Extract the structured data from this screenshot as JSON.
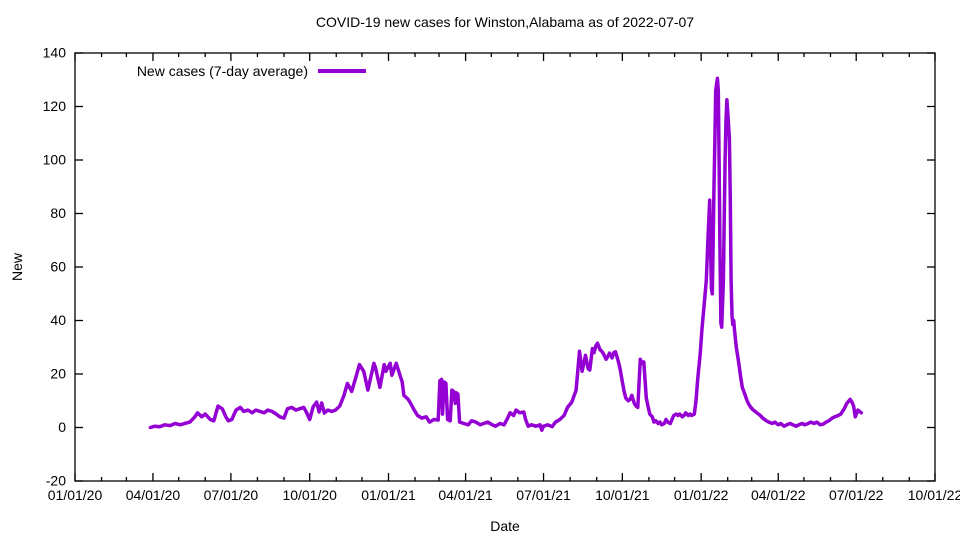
{
  "chart_data": {
    "type": "line",
    "title": "COVID-19 new cases for Winston,Alabama as of 2022-07-07",
    "xlabel": "Date",
    "ylabel": "New",
    "ylim": [
      -20,
      140
    ],
    "x_range": [
      "2020-01-01",
      "2022-10-01"
    ],
    "y_ticks": [
      -20,
      0,
      20,
      40,
      60,
      80,
      100,
      120,
      140
    ],
    "x_ticks": [
      "01/01/20",
      "04/01/20",
      "07/01/20",
      "10/01/20",
      "01/01/21",
      "04/01/21",
      "07/01/21",
      "10/01/21",
      "01/01/22",
      "04/01/22",
      "07/01/22",
      "10/01/22"
    ],
    "grid": false,
    "legend_position": "top-left-inside",
    "line_color": "#9400D3",
    "axis_color": "#000000",
    "background_color": "#ffffff",
    "series": [
      {
        "name": "New cases (7-day average)",
        "points": [
          [
            "2020-03-29",
            0
          ],
          [
            "2020-04-03",
            0.5
          ],
          [
            "2020-04-09",
            0.3
          ],
          [
            "2020-04-15",
            1
          ],
          [
            "2020-04-21",
            0.7
          ],
          [
            "2020-04-27",
            1.5
          ],
          [
            "2020-05-03",
            1
          ],
          [
            "2020-05-08",
            1.5
          ],
          [
            "2020-05-14",
            2
          ],
          [
            "2020-05-20",
            4
          ],
          [
            "2020-05-23",
            5.5
          ],
          [
            "2020-05-28",
            4
          ],
          [
            "2020-06-01",
            5
          ],
          [
            "2020-06-07",
            3
          ],
          [
            "2020-06-11",
            2.5
          ],
          [
            "2020-06-16",
            8
          ],
          [
            "2020-06-21",
            7
          ],
          [
            "2020-06-25",
            4
          ],
          [
            "2020-06-28",
            2.5
          ],
          [
            "2020-07-02",
            3
          ],
          [
            "2020-07-07",
            6.5
          ],
          [
            "2020-07-12",
            7.5
          ],
          [
            "2020-07-16",
            6
          ],
          [
            "2020-07-21",
            6.5
          ],
          [
            "2020-07-26",
            5.5
          ],
          [
            "2020-07-30",
            6.5
          ],
          [
            "2020-08-04",
            6
          ],
          [
            "2020-08-09",
            5.5
          ],
          [
            "2020-08-13",
            6.5
          ],
          [
            "2020-08-18",
            6
          ],
          [
            "2020-08-23",
            5
          ],
          [
            "2020-08-27",
            4
          ],
          [
            "2020-09-01",
            3.5
          ],
          [
            "2020-09-05",
            7
          ],
          [
            "2020-09-10",
            7.5
          ],
          [
            "2020-09-15",
            6.5
          ],
          [
            "2020-09-19",
            7
          ],
          [
            "2020-09-24",
            7.5
          ],
          [
            "2020-09-27",
            5.8
          ],
          [
            "2020-10-01",
            3
          ],
          [
            "2020-10-05",
            7.7
          ],
          [
            "2020-10-09",
            9.5
          ],
          [
            "2020-10-12",
            5.8
          ],
          [
            "2020-10-15",
            9.2
          ],
          [
            "2020-10-18",
            5.4
          ],
          [
            "2020-10-22",
            6.5
          ],
          [
            "2020-10-27",
            6
          ],
          [
            "2020-10-31",
            6.5
          ],
          [
            "2020-11-05",
            8
          ],
          [
            "2020-11-10",
            12
          ],
          [
            "2020-11-14",
            16.5
          ],
          [
            "2020-11-19",
            13.5
          ],
          [
            "2020-11-24",
            19
          ],
          [
            "2020-11-28",
            23.5
          ],
          [
            "2020-12-03",
            21
          ],
          [
            "2020-12-08",
            14
          ],
          [
            "2020-12-10",
            17
          ],
          [
            "2020-12-15",
            24
          ],
          [
            "2020-12-17",
            22
          ],
          [
            "2020-12-22",
            15
          ],
          [
            "2020-12-27",
            23.5
          ],
          [
            "2020-12-29",
            21
          ],
          [
            "2021-01-03",
            24
          ],
          [
            "2021-01-05",
            19.5
          ],
          [
            "2021-01-10",
            24
          ],
          [
            "2021-01-12",
            22
          ],
          [
            "2021-01-17",
            17
          ],
          [
            "2021-01-19",
            12
          ],
          [
            "2021-01-24",
            10.5
          ],
          [
            "2021-01-26",
            9.5
          ],
          [
            "2021-01-31",
            6.5
          ],
          [
            "2021-02-04",
            4.5
          ],
          [
            "2021-02-09",
            3.5
          ],
          [
            "2021-02-14",
            4
          ],
          [
            "2021-02-18",
            2
          ],
          [
            "2021-02-23",
            3
          ],
          [
            "2021-02-28",
            2.8
          ],
          [
            "2021-03-02",
            17.5
          ],
          [
            "2021-03-04",
            18
          ],
          [
            "2021-03-05",
            5
          ],
          [
            "2021-03-07",
            17
          ],
          [
            "2021-03-09",
            16.5
          ],
          [
            "2021-03-11",
            3
          ],
          [
            "2021-03-14",
            2.5
          ],
          [
            "2021-03-16",
            14
          ],
          [
            "2021-03-18",
            13.5
          ],
          [
            "2021-03-20",
            9
          ],
          [
            "2021-03-21",
            13
          ],
          [
            "2021-03-23",
            12.5
          ],
          [
            "2021-03-25",
            2
          ],
          [
            "2021-03-30",
            1.5
          ],
          [
            "2021-04-04",
            1
          ],
          [
            "2021-04-08",
            2.5
          ],
          [
            "2021-04-13",
            2
          ],
          [
            "2021-04-18",
            1
          ],
          [
            "2021-04-22",
            1.5
          ],
          [
            "2021-04-27",
            2
          ],
          [
            "2021-05-02",
            1
          ],
          [
            "2021-05-06",
            0.5
          ],
          [
            "2021-05-11",
            1.5
          ],
          [
            "2021-05-16",
            1
          ],
          [
            "2021-05-20",
            3.5
          ],
          [
            "2021-05-23",
            5.5
          ],
          [
            "2021-05-27",
            4.5
          ],
          [
            "2021-05-30",
            6.5
          ],
          [
            "2021-06-03",
            5.5
          ],
          [
            "2021-06-08",
            5.8
          ],
          [
            "2021-06-10",
            3
          ],
          [
            "2021-06-13",
            0.5
          ],
          [
            "2021-06-17",
            1
          ],
          [
            "2021-06-22",
            0.5
          ],
          [
            "2021-06-27",
            1
          ],
          [
            "2021-06-29",
            -1
          ],
          [
            "2021-07-01",
            0.5
          ],
          [
            "2021-07-06",
            1
          ],
          [
            "2021-07-11",
            0.3
          ],
          [
            "2021-07-15",
            2
          ],
          [
            "2021-07-20",
            3
          ],
          [
            "2021-07-25",
            4.5
          ],
          [
            "2021-07-29",
            7.5
          ],
          [
            "2021-08-03",
            9.5
          ],
          [
            "2021-08-08",
            14
          ],
          [
            "2021-08-12",
            28.5
          ],
          [
            "2021-08-15",
            21
          ],
          [
            "2021-08-17",
            24
          ],
          [
            "2021-08-19",
            27
          ],
          [
            "2021-08-22",
            22
          ],
          [
            "2021-08-24",
            21.5
          ],
          [
            "2021-08-27",
            29.5
          ],
          [
            "2021-08-29",
            28
          ],
          [
            "2021-08-31",
            30.5
          ],
          [
            "2021-09-02",
            31.5
          ],
          [
            "2021-09-05",
            29
          ],
          [
            "2021-09-07",
            28.5
          ],
          [
            "2021-09-09",
            27.5
          ],
          [
            "2021-09-12",
            25.5
          ],
          [
            "2021-09-14",
            26.5
          ],
          [
            "2021-09-16",
            27.8
          ],
          [
            "2021-09-19",
            26
          ],
          [
            "2021-09-21",
            28
          ],
          [
            "2021-09-23",
            28.3
          ],
          [
            "2021-09-26",
            25
          ],
          [
            "2021-09-28",
            22.5
          ],
          [
            "2021-10-01",
            17
          ],
          [
            "2021-10-03",
            13.5
          ],
          [
            "2021-10-05",
            11
          ],
          [
            "2021-10-08",
            10
          ],
          [
            "2021-10-10",
            10.5
          ],
          [
            "2021-10-12",
            12
          ],
          [
            "2021-10-15",
            9
          ],
          [
            "2021-10-17",
            8
          ],
          [
            "2021-10-19",
            7.5
          ],
          [
            "2021-10-22",
            25.5
          ],
          [
            "2021-10-24",
            24
          ],
          [
            "2021-10-26",
            24.5
          ],
          [
            "2021-10-29",
            11
          ],
          [
            "2021-10-31",
            8
          ],
          [
            "2021-11-02",
            5
          ],
          [
            "2021-11-05",
            4
          ],
          [
            "2021-11-07",
            2
          ],
          [
            "2021-11-09",
            2.5
          ],
          [
            "2021-11-12",
            1.5
          ],
          [
            "2021-11-14",
            2
          ],
          [
            "2021-11-16",
            1
          ],
          [
            "2021-11-19",
            1.5
          ],
          [
            "2021-11-21",
            3
          ],
          [
            "2021-11-23",
            2
          ],
          [
            "2021-11-26",
            1.5
          ],
          [
            "2021-11-30",
            4.5
          ],
          [
            "2021-12-03",
            5
          ],
          [
            "2021-12-05",
            4.5
          ],
          [
            "2021-12-07",
            5
          ],
          [
            "2021-12-10",
            4
          ],
          [
            "2021-12-12",
            4.5
          ],
          [
            "2021-12-14",
            5.5
          ],
          [
            "2021-12-17",
            4.5
          ],
          [
            "2021-12-19",
            5
          ],
          [
            "2021-12-21",
            4.5
          ],
          [
            "2021-12-24",
            5
          ],
          [
            "2021-12-26",
            10
          ],
          [
            "2021-12-28",
            18
          ],
          [
            "2021-12-31",
            28
          ],
          [
            "2022-01-02",
            37
          ],
          [
            "2022-01-04",
            44
          ],
          [
            "2022-01-07",
            55
          ],
          [
            "2022-01-09",
            71
          ],
          [
            "2022-01-11",
            85
          ],
          [
            "2022-01-13",
            52
          ],
          [
            "2022-01-14",
            50
          ],
          [
            "2022-01-15",
            68
          ],
          [
            "2022-01-16",
            90
          ],
          [
            "2022-01-17",
            108
          ],
          [
            "2022-01-18",
            126
          ],
          [
            "2022-01-20",
            130.5
          ],
          [
            "2022-01-21",
            126
          ],
          [
            "2022-01-22",
            100
          ],
          [
            "2022-01-23",
            65
          ],
          [
            "2022-01-24",
            39
          ],
          [
            "2022-01-25",
            37.5
          ],
          [
            "2022-01-27",
            55
          ],
          [
            "2022-01-28",
            80
          ],
          [
            "2022-01-29",
            100
          ],
          [
            "2022-01-30",
            115
          ],
          [
            "2022-01-31",
            122.5
          ],
          [
            "2022-02-01",
            118
          ],
          [
            "2022-02-03",
            108
          ],
          [
            "2022-02-04",
            85
          ],
          [
            "2022-02-05",
            55
          ],
          [
            "2022-02-06",
            42
          ],
          [
            "2022-02-07",
            38.5
          ],
          [
            "2022-02-08",
            40
          ],
          [
            "2022-02-09",
            36
          ],
          [
            "2022-02-11",
            30
          ],
          [
            "2022-02-14",
            24
          ],
          [
            "2022-02-16",
            19
          ],
          [
            "2022-02-18",
            15
          ],
          [
            "2022-02-21",
            12.5
          ],
          [
            "2022-02-23",
            10.5
          ],
          [
            "2022-02-25",
            9
          ],
          [
            "2022-02-28",
            7.5
          ],
          [
            "2022-03-03",
            6.5
          ],
          [
            "2022-03-05",
            6
          ],
          [
            "2022-03-07",
            5.5
          ],
          [
            "2022-03-11",
            4.5
          ],
          [
            "2022-03-14",
            3.5
          ],
          [
            "2022-03-18",
            2.5
          ],
          [
            "2022-03-21",
            2
          ],
          [
            "2022-03-25",
            1.5
          ],
          [
            "2022-03-28",
            2
          ],
          [
            "2022-04-01",
            1
          ],
          [
            "2022-04-04",
            1.5
          ],
          [
            "2022-04-08",
            0.5
          ],
          [
            "2022-04-11",
            1
          ],
          [
            "2022-04-15",
            1.5
          ],
          [
            "2022-04-18",
            1
          ],
          [
            "2022-04-22",
            0.5
          ],
          [
            "2022-04-25",
            1
          ],
          [
            "2022-04-29",
            1.5
          ],
          [
            "2022-05-02",
            1
          ],
          [
            "2022-05-06",
            1.5
          ],
          [
            "2022-05-09",
            2
          ],
          [
            "2022-05-13",
            1.5
          ],
          [
            "2022-05-16",
            2
          ],
          [
            "2022-05-20",
            1
          ],
          [
            "2022-05-23",
            1.2
          ],
          [
            "2022-05-27",
            2
          ],
          [
            "2022-05-30",
            2.5
          ],
          [
            "2022-06-03",
            3.5
          ],
          [
            "2022-06-06",
            4
          ],
          [
            "2022-06-10",
            4.5
          ],
          [
            "2022-06-13",
            5
          ],
          [
            "2022-06-17",
            7
          ],
          [
            "2022-06-20",
            9
          ],
          [
            "2022-06-24",
            10.5
          ],
          [
            "2022-06-26",
            9.5
          ],
          [
            "2022-06-28",
            8
          ],
          [
            "2022-06-30",
            4
          ],
          [
            "2022-07-03",
            6.5
          ],
          [
            "2022-07-07",
            5.5
          ]
        ]
      }
    ]
  }
}
